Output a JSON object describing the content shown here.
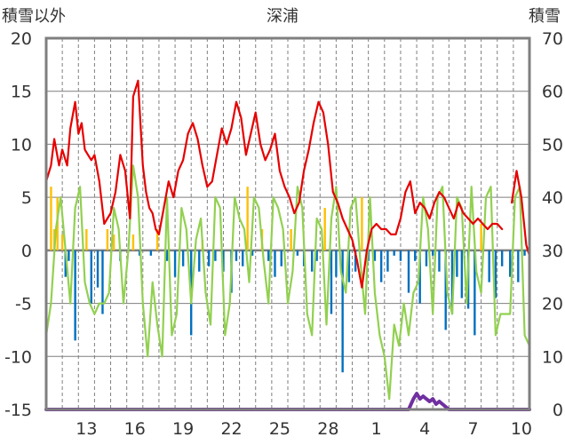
{
  "chart_data": {
    "type": "line",
    "title": "深浦",
    "ylabel_left": "積雪以外",
    "ylabel_right": "積雪",
    "ylim_left": [
      -15,
      20
    ],
    "ylim_right": [
      0,
      70
    ],
    "left_ticks": [
      "20",
      "15",
      "10",
      "5",
      "0",
      "-5",
      "-10",
      "-15"
    ],
    "right_ticks": [
      "70",
      "60",
      "50",
      "40",
      "30",
      "20",
      "10",
      "0"
    ],
    "x_tick_labels": [
      "13",
      "16",
      "19",
      "22",
      "25",
      "28",
      "1",
      "4",
      "7",
      "10"
    ],
    "x_tick_days": [
      2,
      5,
      8,
      11,
      14,
      17,
      20,
      23,
      26,
      29
    ],
    "day_range": [
      0,
      30
    ],
    "grid": true,
    "colors": {
      "temperature": "#e60000",
      "secondary_line": "#92d050",
      "positive_bars": "#ffc000",
      "negative_bars": "#0070c0",
      "snow_depth": "#7030a0",
      "axis": "#7f7f7f",
      "grid": "#7f7f7f"
    },
    "series": [
      {
        "key": "temperature",
        "axis": "left",
        "x": [
          0,
          0.3,
          0.5,
          0.8,
          1,
          1.3,
          1.5,
          1.8,
          2,
          2.2,
          2.4,
          2.6,
          2.8,
          3,
          3.3,
          3.6,
          4,
          4.3,
          4.6,
          4.9,
          5.2,
          5.4,
          5.7,
          6,
          6.2,
          6.4,
          6.6,
          6.8,
          7,
          7.3,
          7.6,
          7.9,
          8.2,
          8.5,
          8.8,
          9.1,
          9.4,
          9.7,
          10,
          10.3,
          10.6,
          10.9,
          11.2,
          11.5,
          11.8,
          12.1,
          12.4,
          12.7,
          13,
          13.3,
          13.6,
          13.9,
          14.2,
          14.5,
          14.8,
          15.1,
          15.4,
          15.7,
          16,
          16.3,
          16.6,
          16.9,
          17.2,
          17.5,
          17.8,
          18.1,
          18.4,
          18.7,
          19,
          19.3,
          19.6,
          19.9,
          20.2,
          20.5,
          20.8,
          21.1,
          21.4,
          21.7,
          22,
          22.3,
          22.6,
          22.9,
          23.2,
          23.5,
          23.8,
          24.1,
          24.4,
          24.7,
          25,
          25.3,
          25.6,
          25.9,
          26.2,
          26.5,
          26.8,
          27.1,
          27.4,
          27.7,
          28,
          28.3,
          28.6,
          28.9,
          29.2,
          29.5,
          29.8,
          30
        ],
        "y": [
          6.5,
          8,
          10.5,
          8,
          9.5,
          8,
          11.5,
          14,
          11,
          12,
          9.5,
          9,
          8.5,
          9,
          6.5,
          2.5,
          3.5,
          5.5,
          9,
          7.5,
          3,
          14.5,
          16,
          8,
          5.5,
          4,
          3.5,
          2,
          1.5,
          4,
          6.5,
          5,
          7.5,
          8.5,
          11,
          12,
          10.5,
          8,
          6,
          6.5,
          9,
          11.5,
          10,
          11.5,
          14,
          12.5,
          9,
          11,
          13,
          10,
          8.5,
          9.5,
          11,
          7.5,
          6,
          5,
          3.5,
          4.5,
          7.5,
          9.5,
          12,
          14,
          13,
          10,
          5.5,
          4.5,
          3,
          2,
          1,
          -1,
          -3.5,
          0,
          2,
          2.5,
          2,
          2,
          1.5,
          1.5,
          3,
          5.5,
          6.5,
          3.5,
          4.5,
          4,
          3,
          4.5,
          5.5,
          5,
          4,
          3,
          4.5,
          3.5,
          3,
          2.5,
          3,
          2.5,
          2,
          2.5,
          2.5,
          2,
          null,
          4.5,
          7.5,
          5,
          0.5,
          -0.5
        ]
      },
      {
        "key": "secondary_line",
        "axis": "left",
        "x": [
          0,
          0.3,
          0.6,
          0.9,
          1.2,
          1.5,
          1.8,
          2.1,
          2.4,
          2.7,
          3,
          3.3,
          3.6,
          3.9,
          4.2,
          4.5,
          4.8,
          5.1,
          5.4,
          5.7,
          6,
          6.3,
          6.6,
          6.9,
          7.2,
          7.5,
          7.8,
          8.1,
          8.4,
          8.7,
          9,
          9.3,
          9.6,
          9.9,
          10.2,
          10.5,
          10.8,
          11.1,
          11.4,
          11.7,
          12,
          12.3,
          12.6,
          12.9,
          13.2,
          13.5,
          13.8,
          14.1,
          14.4,
          14.7,
          15,
          15.3,
          15.6,
          15.9,
          16.2,
          16.5,
          16.8,
          17.1,
          17.4,
          17.7,
          18,
          18.3,
          18.6,
          18.9,
          19.2,
          19.5,
          19.8,
          20.1,
          20.4,
          20.7,
          21,
          21.3,
          21.6,
          21.9,
          22.2,
          22.5,
          22.8,
          23.1,
          23.4,
          23.7,
          24,
          24.3,
          24.6,
          24.9,
          25.2,
          25.5,
          25.8,
          26.1,
          26.4,
          26.7,
          27,
          27.3,
          27.6,
          27.9,
          28.2,
          28.5,
          28.8,
          29.1,
          29.4,
          29.7,
          30
        ],
        "y": [
          -8,
          -5,
          2,
          5,
          0,
          -5,
          4,
          6,
          -3,
          -5,
          -6,
          -5,
          -5,
          -4,
          4,
          2,
          -5,
          0,
          8,
          5,
          -5,
          -10,
          -3,
          -7,
          -10,
          5,
          -8,
          -6,
          4,
          2,
          -5,
          1,
          3,
          -4,
          -7,
          5,
          4,
          -8,
          -5,
          5,
          3,
          2,
          -3,
          5,
          4,
          -1,
          -5,
          5,
          4,
          2,
          -5,
          -2,
          6,
          4,
          -6,
          -8,
          3,
          2,
          -7,
          3,
          6,
          -2,
          -4,
          4,
          5,
          -1,
          -6,
          5,
          -4,
          -8,
          -10,
          -14,
          -7,
          -9,
          -5,
          -8,
          -4,
          -3,
          5,
          2,
          -6,
          5,
          6,
          -4,
          -6,
          5,
          4,
          -5,
          6,
          -2,
          -4,
          5,
          6,
          -8,
          -6,
          -6,
          -6,
          5,
          6,
          -8,
          -9
        ]
      },
      {
        "key": "snow_depth",
        "axis": "right",
        "x": [
          0,
          22,
          22.5,
          22.8,
          23,
          23.2,
          23.4,
          23.6,
          23.8,
          24,
          24.2,
          24.4,
          24.6,
          24.8,
          25,
          30
        ],
        "y": [
          0,
          0,
          0,
          2,
          3,
          2,
          2.5,
          2,
          1.5,
          2,
          1,
          1.5,
          1,
          0.5,
          0,
          0
        ]
      }
    ],
    "bars": {
      "axis": "left",
      "x": [
        0.3,
        0.5,
        0.7,
        1,
        1.2,
        1.4,
        1.8,
        2.5,
        2.8,
        3.2,
        3.5,
        3.8,
        4.2,
        4.6,
        5.4,
        5.8,
        6.5,
        6.9,
        7.5,
        8,
        8.5,
        9,
        9.5,
        9.7,
        10.1,
        10.5,
        11,
        11.5,
        11.8,
        12.2,
        12.5,
        12.8,
        13.4,
        13.8,
        14.2,
        14.6,
        15.2,
        15.6,
        16,
        16.5,
        16.8,
        17.3,
        17.7,
        18,
        18.4,
        18.8,
        19.2,
        19.6,
        20,
        20.4,
        20.8,
        21.2,
        21.6,
        22,
        22.5,
        22.9,
        23.2,
        23.6,
        24,
        24.4,
        24.8,
        25.2,
        25.5,
        25.8,
        26.2,
        26.6,
        27,
        27.5,
        27.9,
        28.3,
        28.8,
        29.3,
        29.7
      ],
      "y": [
        6,
        2,
        5,
        1.5,
        -2.5,
        -1,
        -8.5,
        2,
        -5,
        -3.5,
        -6,
        2,
        1.5,
        -1,
        1.5,
        -0.5,
        -0.5,
        2,
        -1,
        -2.5,
        -1.5,
        -8,
        -2,
        1,
        -1.5,
        -1,
        -2,
        -4,
        -1,
        -1.5,
        6,
        -0.5,
        2,
        -1,
        -2.5,
        -1.5,
        2,
        -0.5,
        -1.5,
        -2,
        -1,
        4,
        -6,
        -2.5,
        -11.5,
        -3,
        -2,
        5,
        -1,
        -1,
        -3,
        -2,
        -0.5,
        -1,
        -4,
        -1,
        -5,
        -1.5,
        -0.5,
        -2,
        -7.5,
        -6,
        -2.5,
        -4.5,
        -5.5,
        -8,
        2.5,
        -3,
        -4.5,
        -1.5,
        -2.5,
        -3,
        -0.5
      ]
    }
  }
}
